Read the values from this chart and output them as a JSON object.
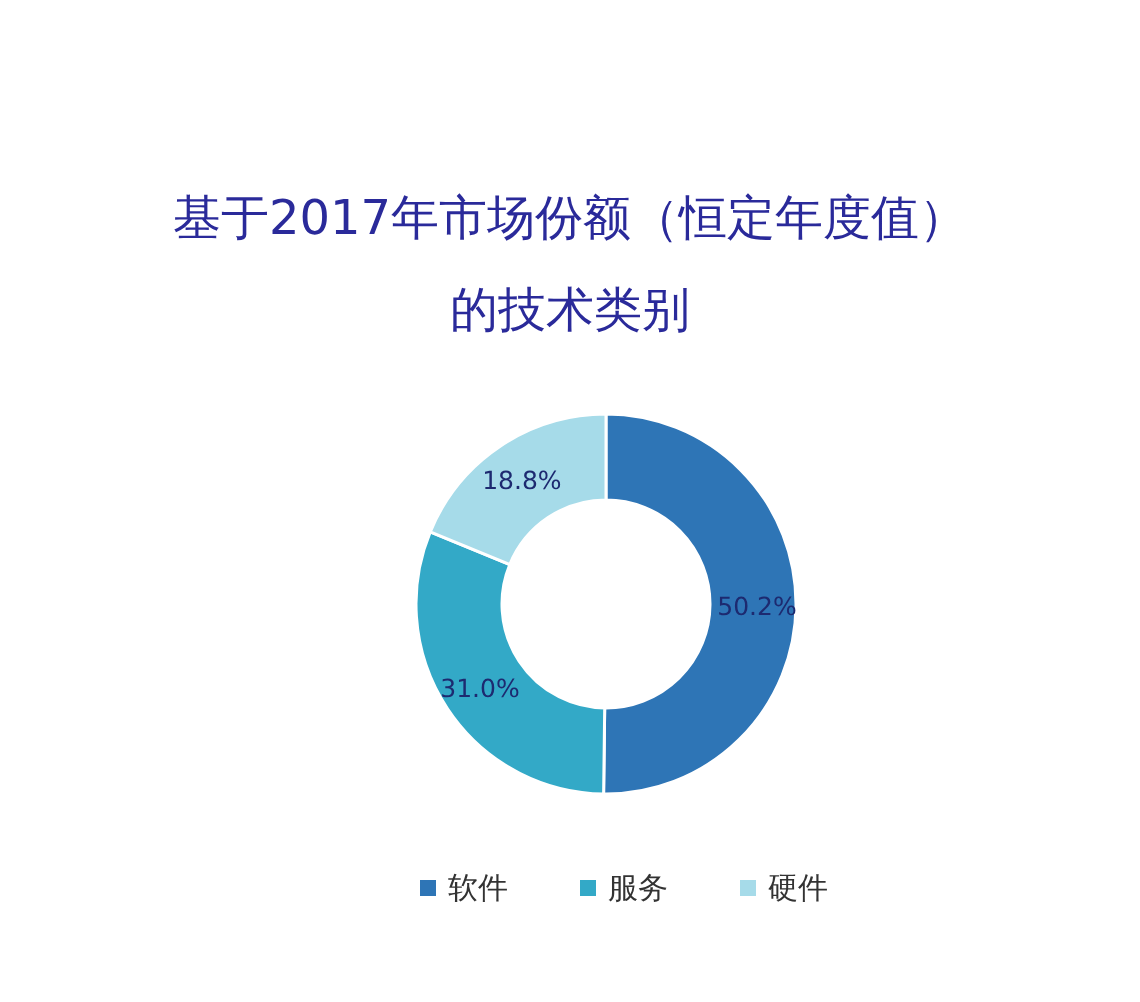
{
  "chart_data": {
    "type": "donut",
    "title": "基于2017年市场份额（恒定年度值）的技术类别",
    "categories": [
      "软件",
      "服务",
      "硬件"
    ],
    "values": [
      50.2,
      31.0,
      18.8
    ],
    "colors": [
      "#2e75b6",
      "#33a9c7",
      "#a6dbe9"
    ],
    "value_labels": [
      "50.2%",
      "31.0%",
      "18.8%"
    ],
    "legend": "bottom"
  }
}
